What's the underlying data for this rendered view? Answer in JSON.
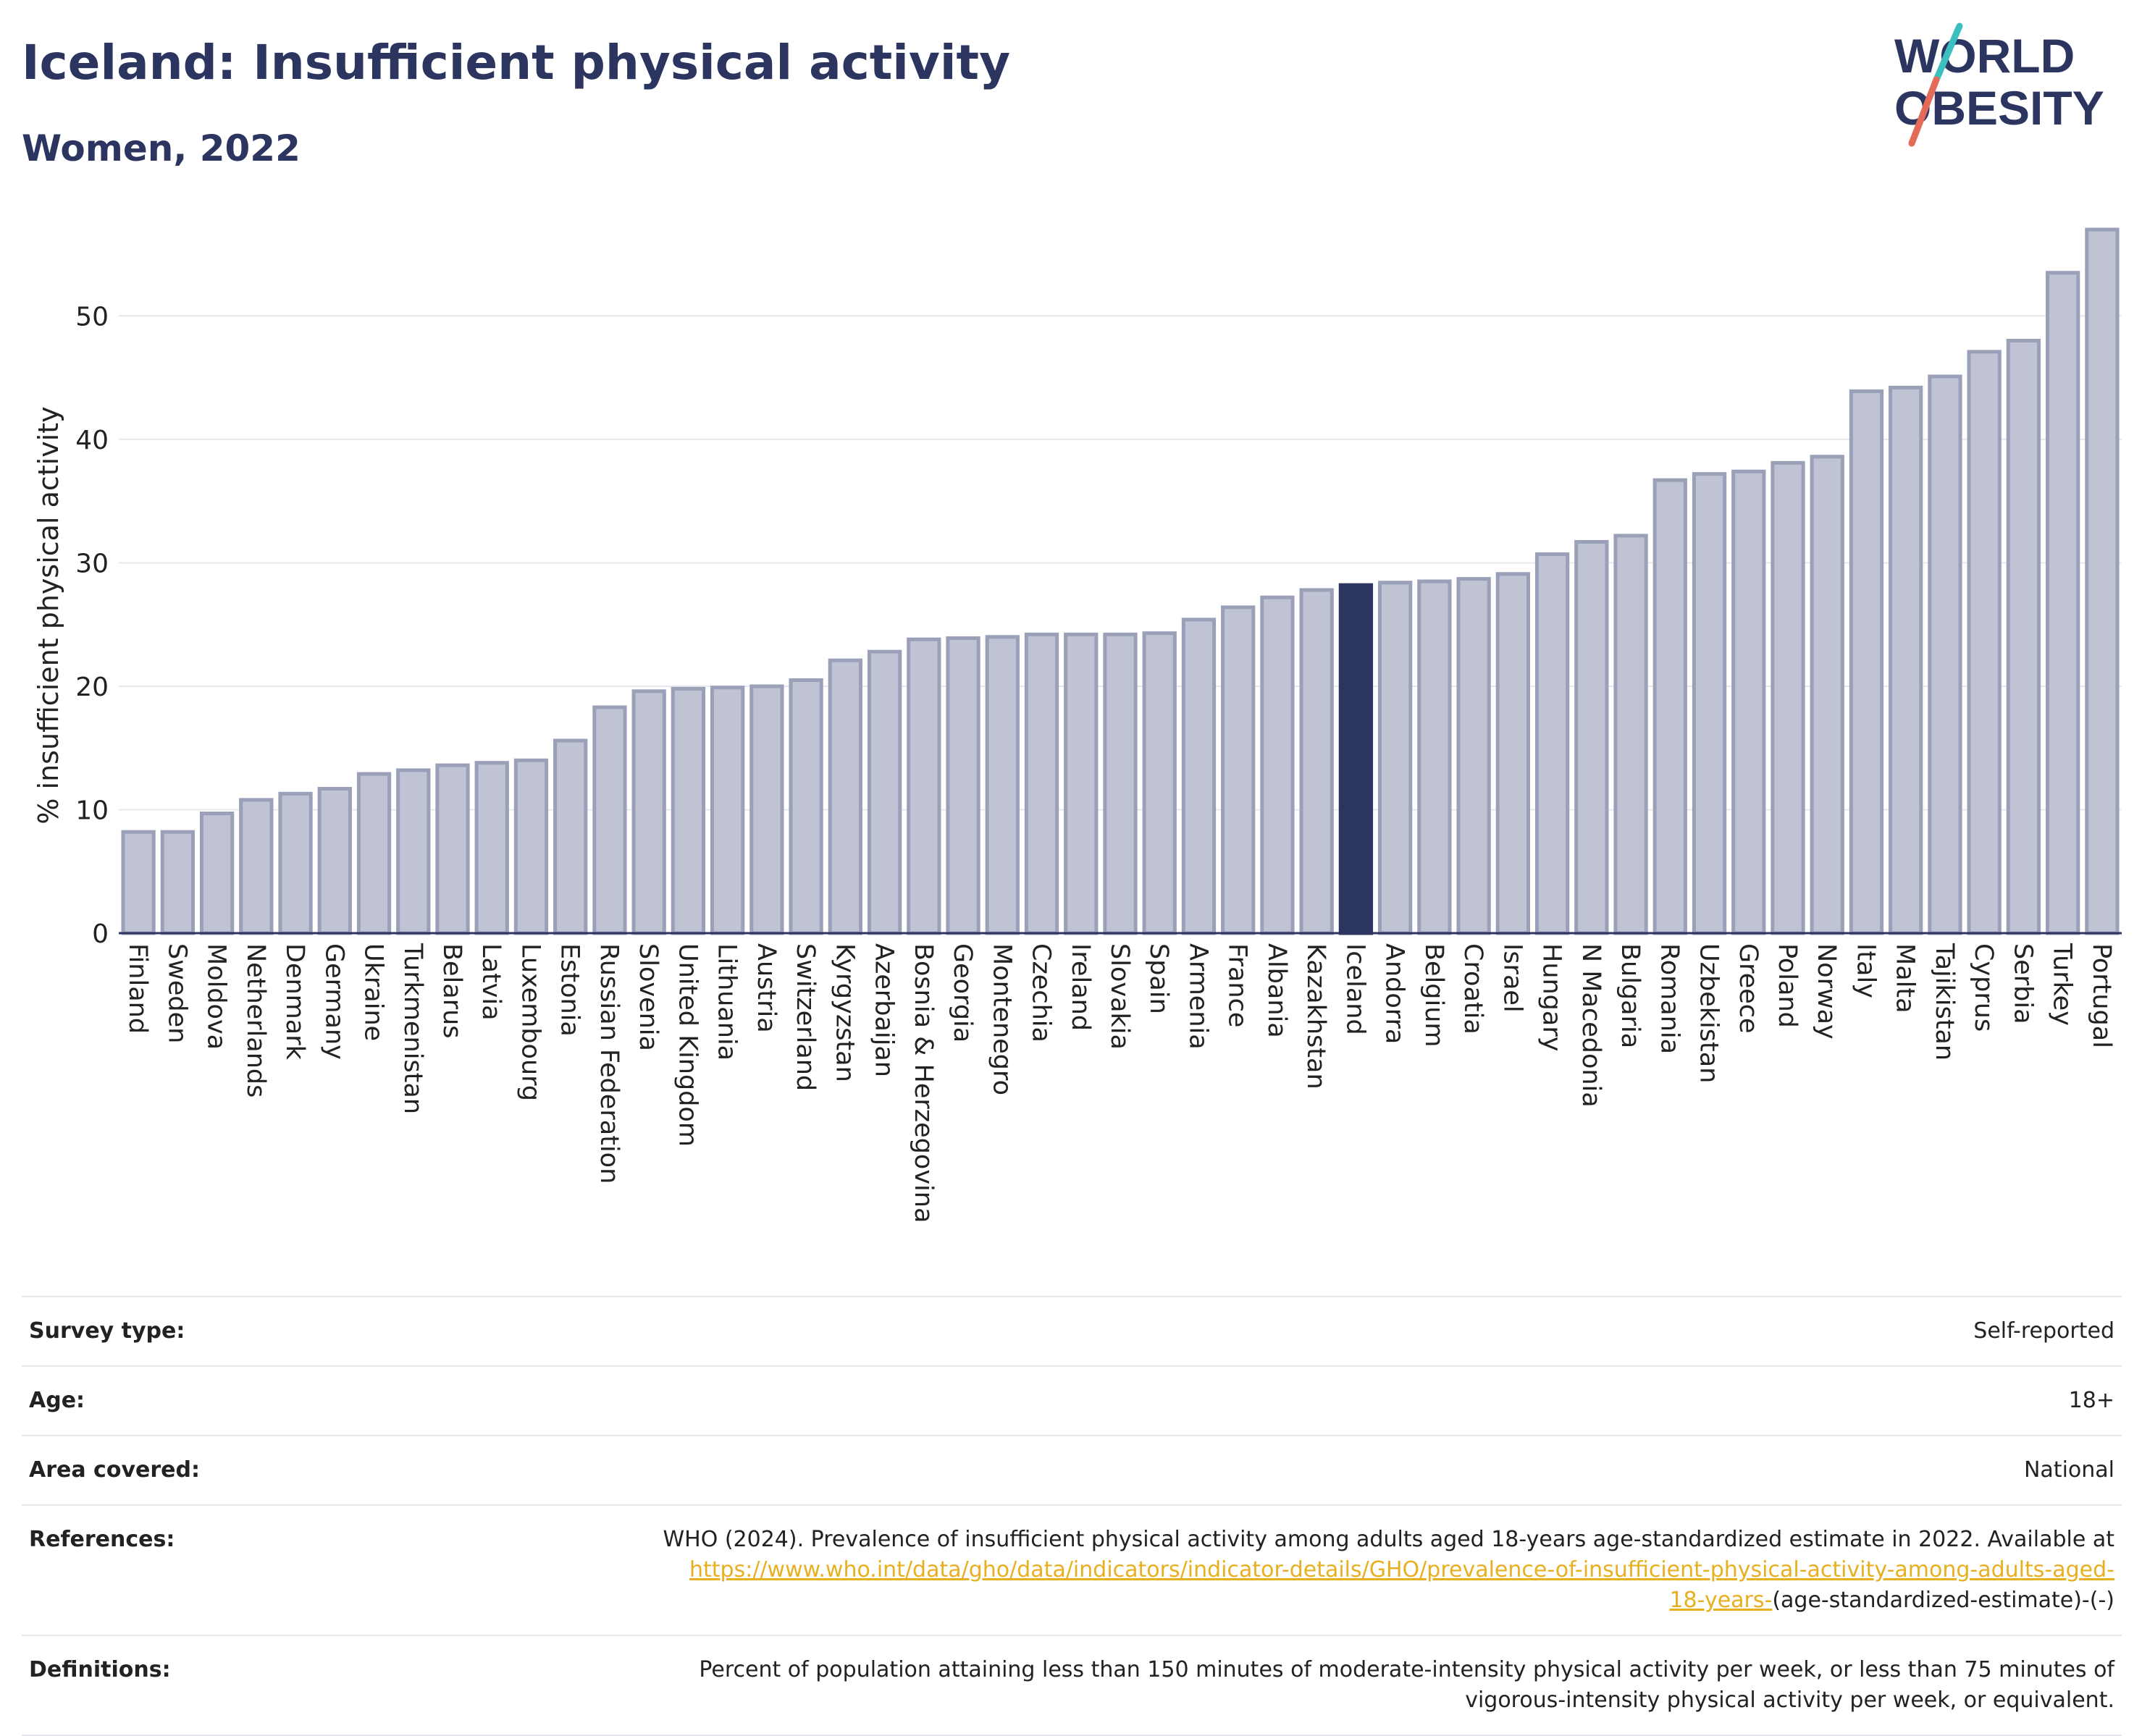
{
  "header": {
    "title": "Iceland: Insufficient physical activity",
    "subtitle": "Women, 2022"
  },
  "logo": {
    "line1": "WORLD",
    "line2": "OBESITY"
  },
  "colors": {
    "bar": "#bfc3d3",
    "bar_stroke": "#9aa0b8",
    "highlight": "#2b3560",
    "grid": "#e6e8ee",
    "link": "#e8b020",
    "accent_teal": "#3bbfbf",
    "accent_red": "#e46a5a"
  },
  "chart_data": {
    "type": "bar",
    "ylabel": "% insufficient physical activity",
    "ylim": [
      0,
      58
    ],
    "yticks": [
      0,
      10,
      20,
      30,
      40,
      50
    ],
    "grid": true,
    "highlight": "Iceland",
    "categories": [
      "Finland",
      "Sweden",
      "Moldova",
      "Netherlands",
      "Denmark",
      "Germany",
      "Ukraine",
      "Turkmenistan",
      "Belarus",
      "Latvia",
      "Luxembourg",
      "Estonia",
      "Russian Federation",
      "Slovenia",
      "United Kingdom",
      "Lithuania",
      "Austria",
      "Switzerland",
      "Kyrgyzstan",
      "Azerbaijan",
      "Bosnia & Herzegovina",
      "Georgia",
      "Montenegro",
      "Czechia",
      "Ireland",
      "Slovakia",
      "Spain",
      "Armenia",
      "France",
      "Albania",
      "Kazakhstan",
      "Iceland",
      "Andorra",
      "Belgium",
      "Croatia",
      "Israel",
      "Hungary",
      "N Macedonia",
      "Bulgaria",
      "Romania",
      "Uzbekistan",
      "Greece",
      "Poland",
      "Norway",
      "Italy",
      "Malta",
      "Tajikistan",
      "Cyprus",
      "Serbia",
      "Turkey",
      "Portugal"
    ],
    "values": [
      8.2,
      8.2,
      9.7,
      10.8,
      11.3,
      11.7,
      12.9,
      13.2,
      13.6,
      13.8,
      14.0,
      15.6,
      18.3,
      19.6,
      19.8,
      19.9,
      20.0,
      20.5,
      22.1,
      22.8,
      23.8,
      23.9,
      24.0,
      24.2,
      24.2,
      24.2,
      24.3,
      25.4,
      26.4,
      27.2,
      27.8,
      28.2,
      28.4,
      28.5,
      28.7,
      29.1,
      30.7,
      31.7,
      32.2,
      36.7,
      37.2,
      37.4,
      38.1,
      38.6,
      43.9,
      44.2,
      45.1,
      47.1,
      48.0,
      53.5,
      57.0
    ]
  },
  "meta": {
    "survey_type": {
      "label": "Survey type:",
      "value": "Self-reported"
    },
    "age": {
      "label": "Age:",
      "value": "18+"
    },
    "area": {
      "label": "Area covered:",
      "value": "National"
    },
    "references": {
      "label": "References:",
      "text": "WHO (2024). Prevalence of insufficient physical activity among adults aged 18-years age-standardized estimate in 2022. Available at",
      "link_line1": "https://www.who.int/data/gho/data/indicators/indicator-details/GHO/prevalence-of-insufficient-physical-activity-among-adults-aged-",
      "link_line2": "18-years-",
      "tail": "(age-standardized-estimate)-(-)"
    },
    "definitions": {
      "label": "Definitions:",
      "line1": "Percent of population attaining less than 150 minutes of moderate-intensity physical activity per week, or less than 75 minutes of",
      "line2": "vigorous-intensity physical activity per week, or equivalent."
    }
  }
}
